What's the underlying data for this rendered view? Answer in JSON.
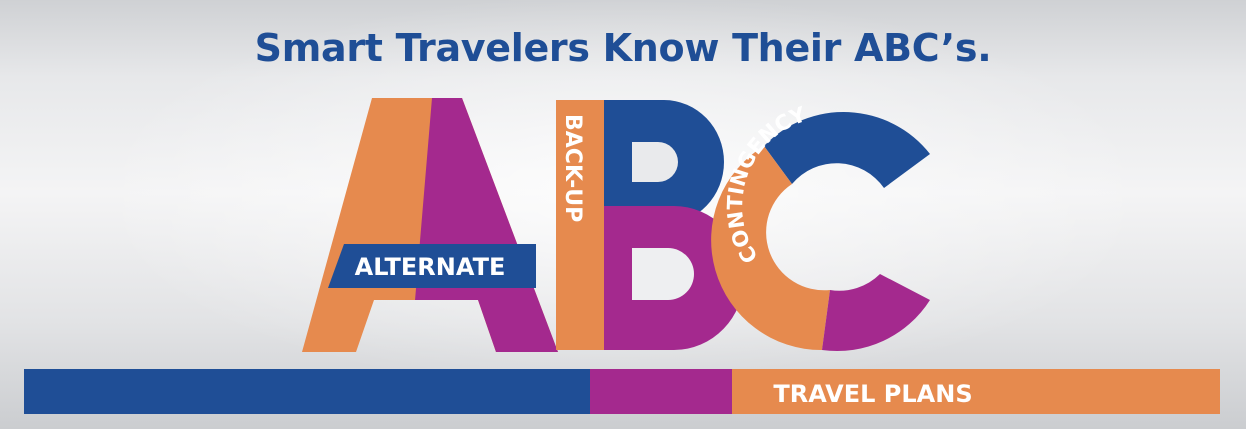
{
  "headline": "Smart Travelers Know Their ABC’s.",
  "labels": {
    "alternate": "ALTERNATE",
    "backup": "BACK-UP",
    "contingency": "CONTINGENCY",
    "travel_plans": "TRAVEL PLANS"
  },
  "colors": {
    "blue": "#1f4e96",
    "orange": "#e68a4e",
    "purple": "#a4298e",
    "white": "#ffffff"
  }
}
